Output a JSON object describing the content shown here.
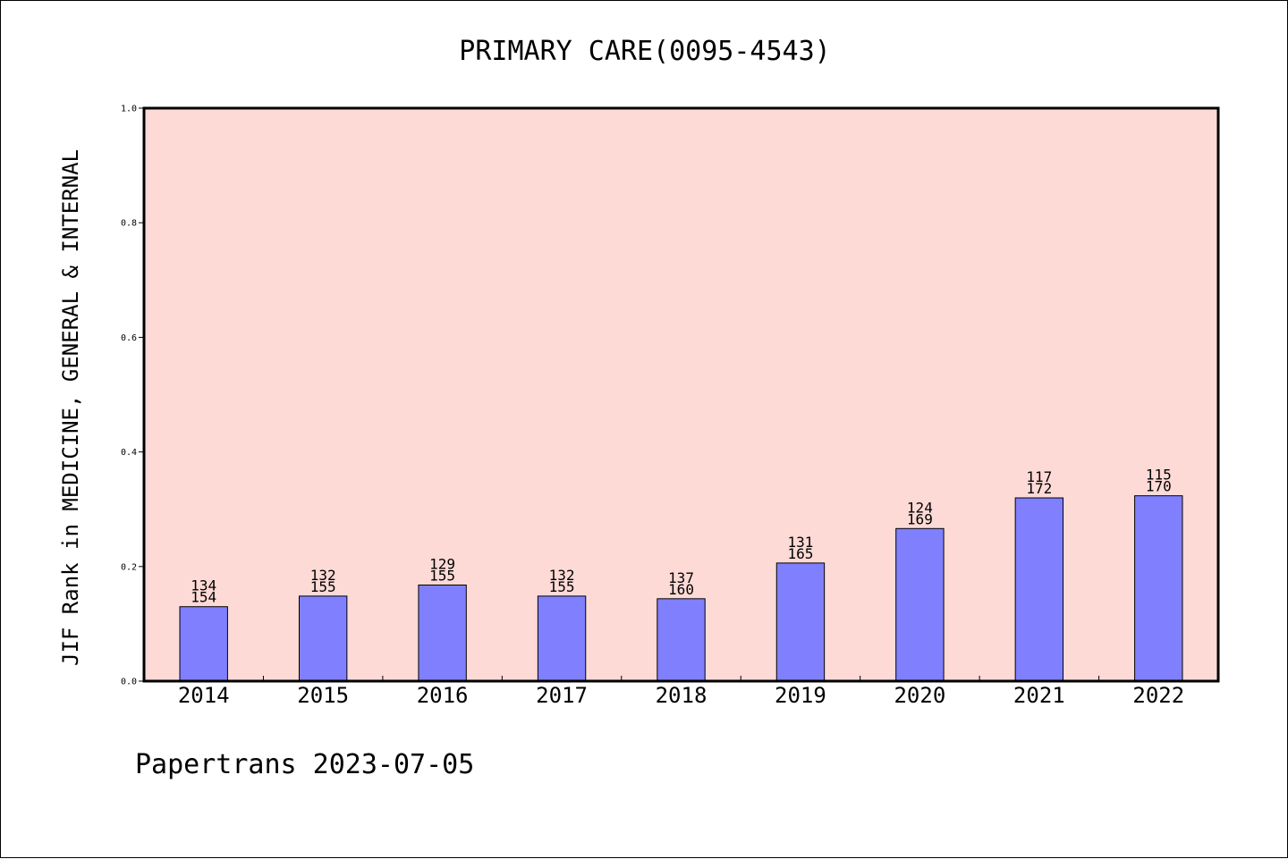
{
  "chart_data": {
    "type": "bar",
    "title": "PRIMARY CARE(0095-4543)",
    "ylabel": "JIF Rank in MEDICINE, GENERAL & INTERNAL",
    "xlabel": "",
    "footer": "Papertrans 2023-07-05",
    "ylim": [
      0.0,
      1.0
    ],
    "yticks": [
      "0.0",
      "0.2",
      "0.4",
      "0.6",
      "0.8",
      "1.0"
    ],
    "categories": [
      "2014",
      "2015",
      "2016",
      "2017",
      "2018",
      "2019",
      "2020",
      "2021",
      "2022"
    ],
    "rank": [
      "134",
      "132",
      "129",
      "132",
      "137",
      "131",
      "124",
      "117",
      "115"
    ],
    "total": [
      "154",
      "155",
      "155",
      "155",
      "160",
      "165",
      "169",
      "172",
      "170"
    ],
    "values": [
      0.1299,
      0.1484,
      0.1677,
      0.1484,
      0.1438,
      0.2061,
      0.2663,
      0.3198,
      0.3235
    ],
    "colors": {
      "plot_background": "#fddad6",
      "bar_fill": "#8080ff",
      "bar_edge": "#000000",
      "axis": "#000000"
    },
    "grid": false
  }
}
